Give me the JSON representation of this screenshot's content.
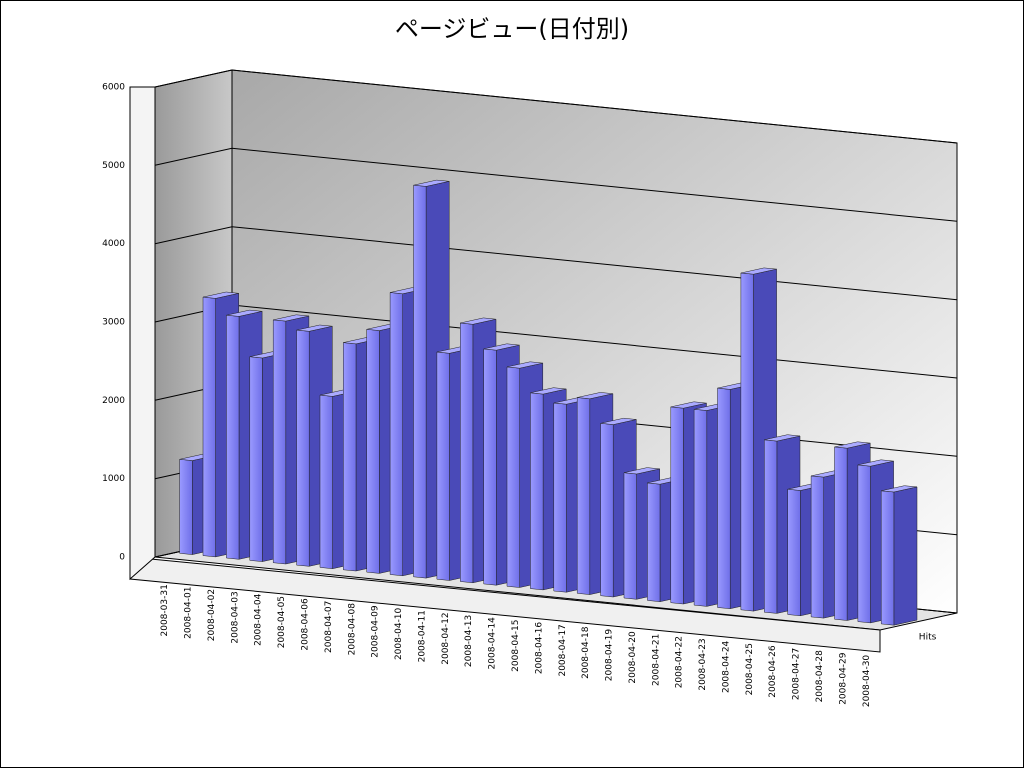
{
  "chart_data": {
    "type": "bar3d",
    "title": "ページビュー(日付別)",
    "categories": [
      "2008-03-31",
      "2008-04-01",
      "2008-04-02",
      "2008-04-03",
      "2008-04-04",
      "2008-04-05",
      "2008-04-06",
      "2008-04-07",
      "2008-04-08",
      "2008-04-09",
      "2008-04-10",
      "2008-04-11",
      "2008-04-12",
      "2008-04-13",
      "2008-04-14",
      "2008-04-15",
      "2008-04-16",
      "2008-04-17",
      "2008-04-18",
      "2008-04-19",
      "2008-04-20",
      "2008-04-21",
      "2008-04-22",
      "2008-04-23",
      "2008-04-24",
      "2008-04-25",
      "2008-04-26",
      "2008-04-27",
      "2008-04-28",
      "2008-04-29",
      "2008-04-30"
    ],
    "series": [
      {
        "name": "Hits",
        "color": "#8080f0",
        "values": [
          1200,
          3300,
          3100,
          2600,
          3100,
          3000,
          2200,
          2900,
          3100,
          3600,
          5000,
          2900,
          3300,
          3000,
          2800,
          2500,
          2400,
          2500,
          2200,
          1600,
          1500,
          2500,
          2500,
          2800,
          4300,
          2200,
          1600,
          1800,
          2200,
          2000,
          1700
        ]
      }
    ],
    "ylim": [
      0,
      6000
    ],
    "yticks": [
      0,
      1000,
      2000,
      3000,
      4000,
      5000,
      6000
    ],
    "grid": true
  }
}
